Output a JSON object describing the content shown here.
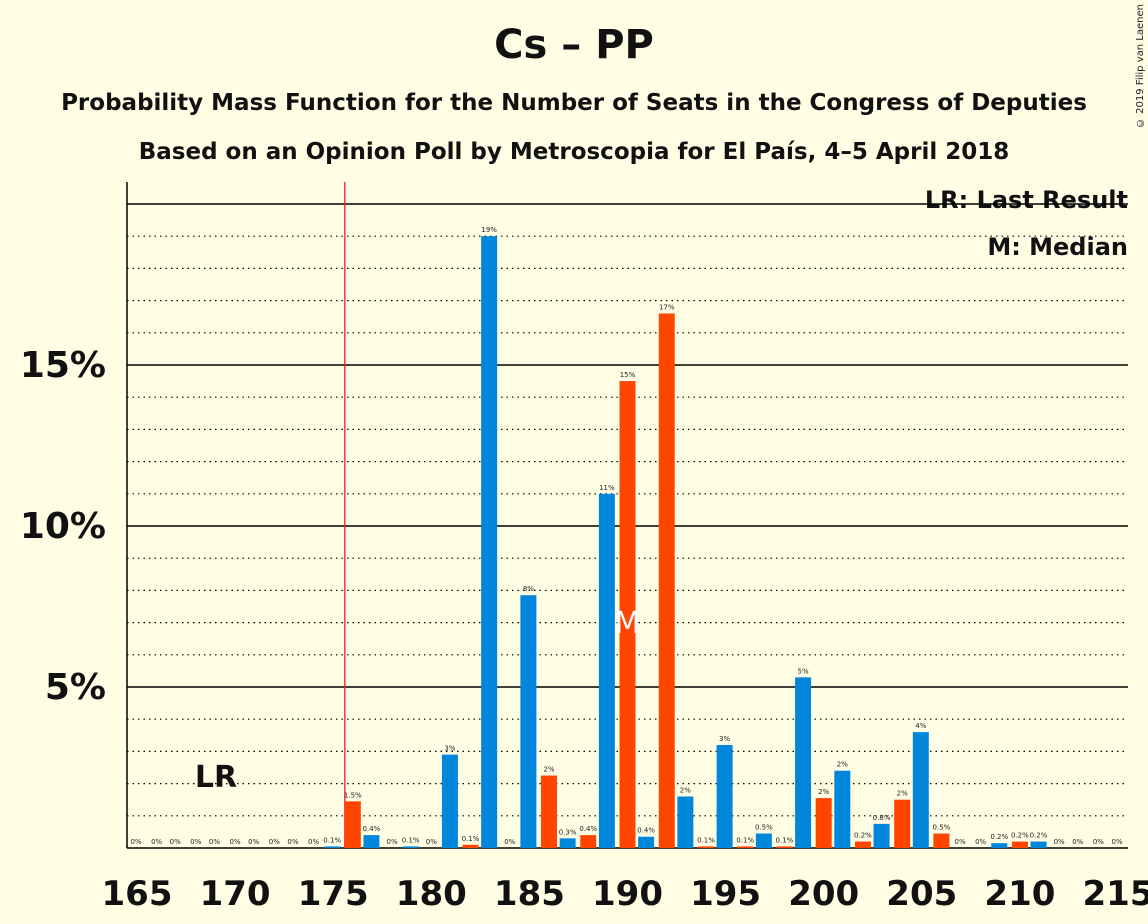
{
  "title": "Cs – PP",
  "subtitle1": "Probability Mass Function for the Number of Seats in the Congress of Deputies",
  "subtitle2": "Based on an Opinion Poll by Metroscopia for El País, 4–5 April 2018",
  "copyright": "© 2019 Filip van Laenen",
  "legend": {
    "lr": "LR: Last Result",
    "m": "M: Median"
  },
  "markers": {
    "lr_label": "LR",
    "median_label": "M",
    "last_result_seat": 176,
    "median_seat": 190
  },
  "colors": {
    "background": "#FFFEE5",
    "blue": "#0087DC",
    "orange": "#FF4500",
    "lr_line": "#E8202A"
  },
  "chart_data": {
    "type": "bar",
    "x_ticks": [
      165,
      170,
      175,
      180,
      185,
      190,
      195,
      200,
      205,
      210,
      215
    ],
    "y_ticks": [
      "5%",
      "10%",
      "15%"
    ],
    "y_tick_values": [
      5,
      10,
      15
    ],
    "ylim": [
      0,
      20.5
    ],
    "xlim": [
      165,
      215
    ],
    "grid": "dotted every 1%, solid every 5%",
    "bars": [
      {
        "seat": 165,
        "value": 0,
        "label": "0%"
      },
      {
        "seat": 166,
        "value": 0,
        "label": "0%"
      },
      {
        "seat": 167,
        "value": 0,
        "label": "0%"
      },
      {
        "seat": 168,
        "value": 0,
        "label": "0%"
      },
      {
        "seat": 169,
        "value": 0,
        "label": "0%"
      },
      {
        "seat": 170,
        "value": 0,
        "label": "0%"
      },
      {
        "seat": 171,
        "value": 0,
        "label": "0%"
      },
      {
        "seat": 172,
        "value": 0,
        "label": "0%"
      },
      {
        "seat": 173,
        "value": 0,
        "label": "0%"
      },
      {
        "seat": 174,
        "value": 0,
        "label": "0%"
      },
      {
        "seat": 175,
        "value": 0.05,
        "label": "0.1%"
      },
      {
        "seat": 176,
        "value": 1.45,
        "label": "1.5%"
      },
      {
        "seat": 177,
        "value": 0.4,
        "label": "0.4%"
      },
      {
        "seat": 178,
        "value": 0,
        "label": "0%"
      },
      {
        "seat": 179,
        "value": 0.05,
        "label": "0.1%"
      },
      {
        "seat": 180,
        "value": 0,
        "label": "0%"
      },
      {
        "seat": 181,
        "value": 2.9,
        "label": "3%"
      },
      {
        "seat": 182,
        "value": 0.1,
        "label": "0.1%"
      },
      {
        "seat": 183,
        "value": 19.0,
        "label": "19%"
      },
      {
        "seat": 184,
        "value": 0,
        "label": "0%"
      },
      {
        "seat": 185,
        "value": 7.85,
        "label": "8%"
      },
      {
        "seat": 186,
        "value": 2.25,
        "label": "2%"
      },
      {
        "seat": 187,
        "value": 0.3,
        "label": "0.3%"
      },
      {
        "seat": 188,
        "value": 0.4,
        "label": "0.4%"
      },
      {
        "seat": 189,
        "value": 11.0,
        "label": "11%"
      },
      {
        "seat": 190,
        "value": 14.5,
        "label": "15%"
      },
      {
        "seat": 191,
        "value": 0.35,
        "label": "0.4%"
      },
      {
        "seat": 192,
        "value": 16.6,
        "label": "17%"
      },
      {
        "seat": 193,
        "value": 1.6,
        "label": "2%"
      },
      {
        "seat": 194,
        "value": 0.05,
        "label": "0.1%"
      },
      {
        "seat": 195,
        "value": 3.2,
        "label": "3%"
      },
      {
        "seat": 196,
        "value": 0.05,
        "label": "0.1%"
      },
      {
        "seat": 197,
        "value": 0.45,
        "label": "0.5%"
      },
      {
        "seat": 198,
        "value": 0.05,
        "label": "0.1%"
      },
      {
        "seat": 199,
        "value": 5.3,
        "label": "5%"
      },
      {
        "seat": 200,
        "value": 1.55,
        "label": "2%"
      },
      {
        "seat": 201,
        "value": 2.4,
        "label": "2%"
      },
      {
        "seat": 202,
        "value": 0.2,
        "label": "0.2%"
      },
      {
        "seat": 203,
        "value": 0.75,
        "label": "0.8%"
      },
      {
        "seat": 204,
        "value": 1.5,
        "label": "2%"
      },
      {
        "seat": 205,
        "value": 3.6,
        "label": "4%"
      },
      {
        "seat": 206,
        "value": 0.45,
        "label": "0.5%"
      },
      {
        "seat": 207,
        "value": 0,
        "label": "0%"
      },
      {
        "seat": 208,
        "value": 0,
        "label": "0%"
      },
      {
        "seat": 209,
        "value": 0.15,
        "label": "0.2%"
      },
      {
        "seat": 210,
        "value": 0.2,
        "label": "0.2%"
      },
      {
        "seat": 211,
        "value": 0.2,
        "label": "0.2%"
      },
      {
        "seat": 212,
        "value": 0,
        "label": "0%"
      },
      {
        "seat": 213,
        "value": 0,
        "label": "0%"
      },
      {
        "seat": 214,
        "value": 0,
        "label": "0%"
      },
      {
        "seat": 215,
        "value": 0,
        "label": "0%"
      }
    ]
  }
}
